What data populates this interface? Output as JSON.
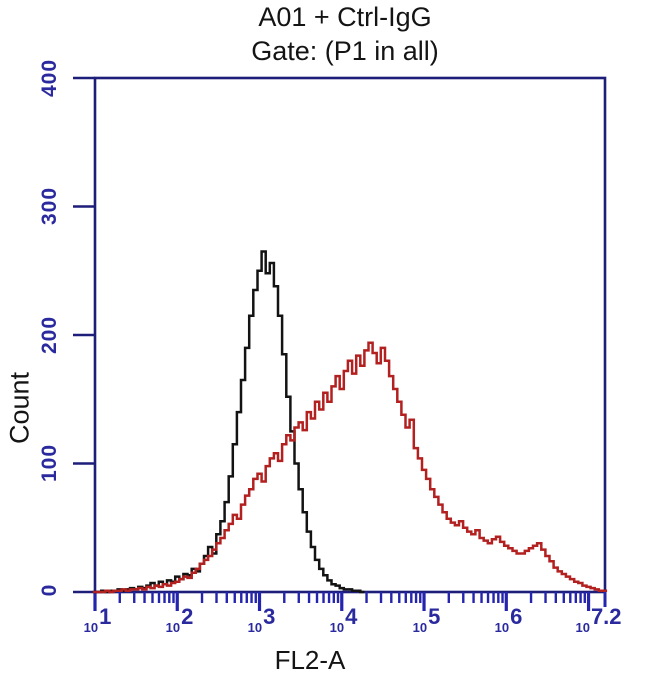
{
  "colors": {
    "background": "#ffffff",
    "frame": "#1d1d7a",
    "ticks": "#2424ac",
    "tick_labels": "#2a2a9e",
    "title_text": "#141414"
  },
  "chart_data": {
    "type": "line",
    "subtype": "flow-cytometry-histogram-overlay",
    "title": "A01 + Ctrl-IgG",
    "subtitle": "Gate: (P1 in all)",
    "xlabel": "FL2-A",
    "ylabel": "Count",
    "x_scale": "log10",
    "xlim": [
      1,
      7.2
    ],
    "ylim": [
      0,
      400
    ],
    "grid": false,
    "legend": "none",
    "y_ticks": [
      0,
      100,
      200,
      300,
      400
    ],
    "x_ticks": [
      {
        "base": "10",
        "exp": "1"
      },
      {
        "base": "10",
        "exp": "2"
      },
      {
        "base": "10",
        "exp": "3"
      },
      {
        "base": "10",
        "exp": "4"
      },
      {
        "base": "10",
        "exp": "5"
      },
      {
        "base": "10",
        "exp": "6"
      },
      {
        "base": "10",
        "exp": "7.2"
      }
    ],
    "series": [
      {
        "name": "black",
        "color": "#131313",
        "peak": {
          "x_log10": 3.05,
          "count": 265
        },
        "x": [
          1.0,
          1.05,
          1.1,
          1.15,
          1.2,
          1.25,
          1.3,
          1.35,
          1.4,
          1.45,
          1.5,
          1.55,
          1.6,
          1.65,
          1.7,
          1.75,
          1.8,
          1.85,
          1.9,
          1.95,
          2.0,
          2.05,
          2.1,
          2.15,
          2.2,
          2.25,
          2.3,
          2.35,
          2.4,
          2.45,
          2.5,
          2.55,
          2.6,
          2.65,
          2.7,
          2.75,
          2.8,
          2.85,
          2.9,
          2.95,
          3.0,
          3.05,
          3.1,
          3.15,
          3.2,
          3.25,
          3.3,
          3.35,
          3.4,
          3.45,
          3.5,
          3.55,
          3.6,
          3.65,
          3.7,
          3.75,
          3.8,
          3.85,
          3.9,
          3.95,
          4.0,
          4.05,
          4.1,
          4.15,
          4.2,
          4.25
        ],
        "y": [
          0,
          0,
          1,
          0,
          1,
          1,
          2,
          1,
          2,
          3,
          2,
          4,
          3,
          5,
          7,
          5,
          8,
          6,
          9,
          8,
          12,
          10,
          14,
          13,
          18,
          16,
          22,
          28,
          35,
          30,
          45,
          55,
          70,
          90,
          115,
          140,
          165,
          190,
          215,
          235,
          250,
          265,
          248,
          256,
          238,
          215,
          185,
          152,
          125,
          100,
          80,
          62,
          47,
          35,
          25,
          18,
          13,
          9,
          6,
          5,
          3,
          2,
          2,
          1,
          1,
          0
        ]
      },
      {
        "name": "red",
        "color": "#b22020",
        "peak": {
          "x_log10": 4.35,
          "count": 194
        },
        "x": [
          1.0,
          1.05,
          1.1,
          1.15,
          1.2,
          1.25,
          1.3,
          1.35,
          1.4,
          1.45,
          1.5,
          1.55,
          1.6,
          1.65,
          1.7,
          1.75,
          1.8,
          1.85,
          1.9,
          1.95,
          2.0,
          2.05,
          2.1,
          2.15,
          2.2,
          2.25,
          2.3,
          2.35,
          2.4,
          2.45,
          2.5,
          2.55,
          2.6,
          2.65,
          2.7,
          2.75,
          2.8,
          2.85,
          2.9,
          2.95,
          3.0,
          3.05,
          3.1,
          3.15,
          3.2,
          3.25,
          3.3,
          3.35,
          3.4,
          3.45,
          3.5,
          3.55,
          3.6,
          3.65,
          3.7,
          3.75,
          3.8,
          3.85,
          3.9,
          3.95,
          4.0,
          4.05,
          4.1,
          4.15,
          4.2,
          4.25,
          4.3,
          4.35,
          4.4,
          4.45,
          4.5,
          4.55,
          4.6,
          4.65,
          4.7,
          4.75,
          4.8,
          4.85,
          4.9,
          4.95,
          5.0,
          5.05,
          5.1,
          5.15,
          5.2,
          5.25,
          5.3,
          5.35,
          5.4,
          5.45,
          5.5,
          5.55,
          5.6,
          5.65,
          5.7,
          5.75,
          5.8,
          5.85,
          5.9,
          5.95,
          6.0,
          6.05,
          6.1,
          6.15,
          6.2,
          6.25,
          6.3,
          6.35,
          6.4,
          6.45,
          6.5,
          6.55,
          6.6,
          6.65,
          6.7,
          6.75,
          6.8,
          6.85,
          6.9,
          6.95,
          7.0,
          7.05,
          7.1,
          7.15,
          7.2
        ],
        "y": [
          0,
          0,
          0,
          1,
          0,
          1,
          1,
          2,
          1,
          2,
          2,
          3,
          2,
          4,
          3,
          5,
          4,
          6,
          5,
          7,
          8,
          10,
          12,
          11,
          15,
          18,
          22,
          25,
          28,
          33,
          38,
          42,
          48,
          53,
          60,
          57,
          68,
          75,
          80,
          88,
          92,
          86,
          98,
          104,
          108,
          102,
          115,
          122,
          118,
          128,
          132,
          126,
          140,
          135,
          148,
          142,
          155,
          148,
          160,
          168,
          158,
          172,
          180,
          170,
          184,
          176,
          188,
          194,
          186,
          178,
          190,
          180,
          168,
          158,
          148,
          138,
          128,
          134,
          112,
          104,
          95,
          88,
          80,
          74,
          68,
          62,
          57,
          54,
          52,
          55,
          50,
          47,
          45,
          48,
          42,
          40,
          38,
          41,
          43,
          39,
          36,
          34,
          32,
          30,
          30,
          32,
          34,
          36,
          38,
          33,
          28,
          24,
          19,
          16,
          14,
          12,
          10,
          8,
          7,
          5,
          4,
          3,
          2,
          1,
          1
        ]
      }
    ]
  }
}
